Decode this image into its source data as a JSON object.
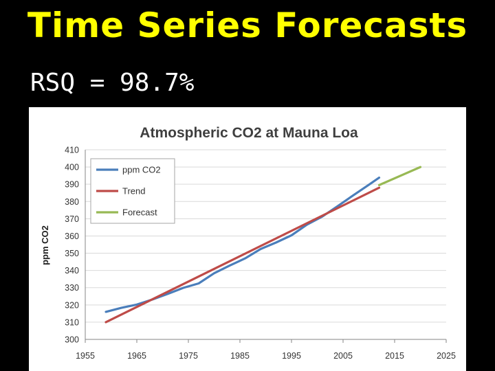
{
  "slide": {
    "title": "Time Series Forecasts",
    "subtitle": "RSQ = 98.7%"
  },
  "colors": {
    "background": "#000000",
    "title": "#ffff00",
    "subtitle": "#ffffff",
    "ppm": "#4a7ebb",
    "trend": "#be4b48",
    "forecast": "#98b954"
  },
  "chart_data": {
    "type": "line",
    "title": "Atmospheric CO2 at Mauna Loa",
    "xlabel": "",
    "ylabel": "ppm CO2",
    "xlim": [
      1955,
      2025
    ],
    "ylim": [
      300,
      410
    ],
    "xticks": [
      1955,
      1965,
      1975,
      1985,
      1995,
      2005,
      2015,
      2025
    ],
    "yticks": [
      300,
      310,
      320,
      330,
      340,
      350,
      360,
      370,
      380,
      390,
      400,
      410
    ],
    "grid": "horizontal",
    "legend_position": "top-left",
    "series": [
      {
        "name": "ppm CO2",
        "color": "#4a7ebb",
        "x": [
          1959,
          1962,
          1965,
          1968,
          1971,
          1974,
          1977,
          1980,
          1983,
          1986,
          1989,
          1992,
          1995,
          1998,
          2001,
          2004,
          2007,
          2010,
          2012
        ],
        "y": [
          316,
          318.3,
          320.2,
          323.1,
          326.4,
          329.9,
          332.5,
          338.4,
          342.8,
          347,
          352.4,
          356.2,
          360.4,
          366.6,
          371.3,
          377.4,
          383.6,
          389.7,
          393.8
        ]
      },
      {
        "name": "Trend",
        "color": "#be4b48",
        "x": [
          1959,
          2012
        ],
        "y": [
          310,
          388
        ]
      },
      {
        "name": "Forecast",
        "color": "#98b954",
        "x": [
          2012,
          2020
        ],
        "y": [
          389.5,
          400
        ]
      }
    ]
  }
}
